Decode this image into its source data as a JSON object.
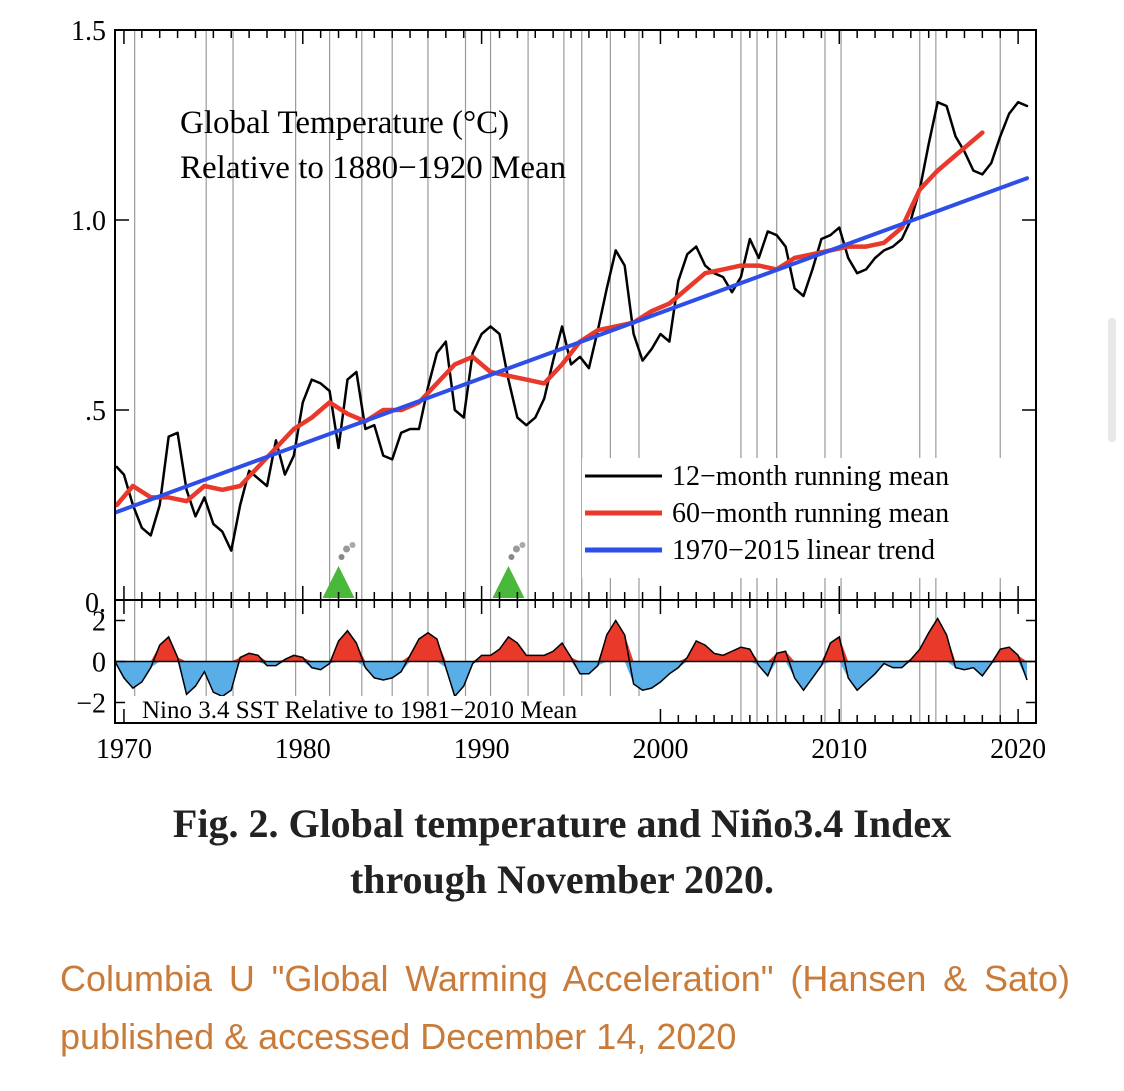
{
  "chart_data": [
    {
      "type": "line",
      "title": "Global Temperature (°C)",
      "subtitle": "Relative to 1880−1920 Mean",
      "xlim": [
        1969.5,
        2021
      ],
      "ylim": [
        0,
        1.5
      ],
      "ytick_labels": [
        "0.",
        ".5",
        "1.0",
        "1.5"
      ],
      "yticks": [
        0,
        0.5,
        1.0,
        1.5
      ],
      "xtick_labels": [
        "1970",
        "1980",
        "1990",
        "2000",
        "2010",
        "2020"
      ],
      "xticks": [
        1970,
        1980,
        1990,
        2000,
        2010,
        2020
      ],
      "grid": "vertical lines at El Niño / La Niña events",
      "event_lines": [
        1970.6,
        1974.6,
        1976.1,
        1979.6,
        1981.5,
        1983.3,
        1985.0,
        1987.0,
        1989.1,
        1990.5,
        1992.6,
        1994.6,
        1995.6,
        1997.2,
        1998.8,
        2004.5,
        2005.4,
        2006.5,
        2009.2,
        2010.1,
        2014.5,
        2015.4,
        2019.0
      ],
      "volcano_markers": [
        1982.0,
        1991.5
      ],
      "legend_position": "bottom-right",
      "series": [
        {
          "name": "12−month running mean",
          "color": "#000000",
          "x": [
            1969.6,
            1970.0,
            1970.5,
            1971.0,
            1971.5,
            1972.0,
            1972.5,
            1973.0,
            1973.5,
            1974.0,
            1974.5,
            1975.0,
            1975.5,
            1976.0,
            1976.5,
            1977.0,
            1977.5,
            1978.0,
            1978.5,
            1979.0,
            1979.5,
            1980.0,
            1980.5,
            1981.0,
            1981.5,
            1982.0,
            1982.5,
            1983.0,
            1983.5,
            1984.0,
            1984.5,
            1985.0,
            1985.5,
            1986.0,
            1986.5,
            1987.0,
            1987.5,
            1988.0,
            1988.5,
            1989.0,
            1989.5,
            1990.0,
            1990.5,
            1991.0,
            1991.5,
            1992.0,
            1992.5,
            1993.0,
            1993.5,
            1994.0,
            1994.5,
            1995.0,
            1995.5,
            1996.0,
            1996.5,
            1997.0,
            1997.5,
            1998.0,
            1998.5,
            1999.0,
            1999.5,
            2000.0,
            2000.5,
            2001.0,
            2001.5,
            2002.0,
            2002.5,
            2003.0,
            2003.5,
            2004.0,
            2004.5,
            2005.0,
            2005.5,
            2006.0,
            2006.5,
            2007.0,
            2007.5,
            2008.0,
            2008.5,
            2009.0,
            2009.5,
            2010.0,
            2010.5,
            2011.0,
            2011.5,
            2012.0,
            2012.5,
            2013.0,
            2013.5,
            2014.0,
            2014.5,
            2015.0,
            2015.5,
            2016.0,
            2016.5,
            2017.0,
            2017.5,
            2018.0,
            2018.5,
            2019.0,
            2019.5,
            2020.0,
            2020.5
          ],
          "values": [
            0.35,
            0.33,
            0.25,
            0.19,
            0.17,
            0.25,
            0.43,
            0.44,
            0.29,
            0.22,
            0.27,
            0.2,
            0.18,
            0.13,
            0.25,
            0.34,
            0.32,
            0.3,
            0.42,
            0.33,
            0.38,
            0.52,
            0.58,
            0.57,
            0.55,
            0.4,
            0.58,
            0.6,
            0.45,
            0.46,
            0.38,
            0.37,
            0.44,
            0.45,
            0.45,
            0.56,
            0.65,
            0.68,
            0.5,
            0.48,
            0.65,
            0.7,
            0.72,
            0.7,
            0.58,
            0.48,
            0.46,
            0.48,
            0.53,
            0.63,
            0.72,
            0.62,
            0.64,
            0.61,
            0.71,
            0.82,
            0.92,
            0.88,
            0.7,
            0.63,
            0.66,
            0.7,
            0.68,
            0.84,
            0.91,
            0.93,
            0.88,
            0.86,
            0.85,
            0.81,
            0.85,
            0.95,
            0.9,
            0.97,
            0.96,
            0.93,
            0.82,
            0.8,
            0.87,
            0.95,
            0.96,
            0.98,
            0.9,
            0.86,
            0.87,
            0.9,
            0.92,
            0.93,
            0.95,
            1.0,
            1.08,
            1.2,
            1.31,
            1.3,
            1.22,
            1.18,
            1.13,
            1.12,
            1.15,
            1.22,
            1.28,
            1.31,
            1.3
          ]
        },
        {
          "name": "60−month running mean",
          "color": "#e8392b",
          "x": [
            1969.6,
            1970.5,
            1971.5,
            1972.5,
            1973.5,
            1974.5,
            1975.5,
            1976.5,
            1977.5,
            1978.5,
            1979.5,
            1980.5,
            1981.5,
            1982.5,
            1983.5,
            1984.5,
            1985.5,
            1986.5,
            1987.5,
            1988.5,
            1989.5,
            1990.5,
            1991.5,
            1992.5,
            1993.5,
            1994.5,
            1995.5,
            1996.5,
            1997.5,
            1998.5,
            1999.5,
            2000.5,
            2001.5,
            2002.5,
            2003.5,
            2004.5,
            2005.5,
            2006.5,
            2007.5,
            2008.5,
            2009.5,
            2010.5,
            2011.5,
            2012.5,
            2013.5,
            2014.5,
            2015.5,
            2016.5,
            2017.5,
            2018.0
          ],
          "values": [
            0.25,
            0.3,
            0.27,
            0.27,
            0.26,
            0.3,
            0.29,
            0.3,
            0.35,
            0.4,
            0.45,
            0.48,
            0.52,
            0.49,
            0.47,
            0.5,
            0.5,
            0.52,
            0.57,
            0.62,
            0.64,
            0.6,
            0.59,
            0.58,
            0.57,
            0.62,
            0.68,
            0.71,
            0.72,
            0.73,
            0.76,
            0.78,
            0.82,
            0.86,
            0.87,
            0.88,
            0.88,
            0.87,
            0.9,
            0.91,
            0.92,
            0.93,
            0.93,
            0.94,
            0.98,
            1.08,
            1.13,
            1.17,
            1.21,
            1.23
          ]
        },
        {
          "name": "1970−2015 linear trend",
          "color": "#2e4ee8",
          "x": [
            1969.5,
            2020.5
          ],
          "values": [
            0.23,
            1.11
          ]
        }
      ]
    },
    {
      "type": "area",
      "title": "Nino 3.4 SST Relative to 1981−2010 Mean",
      "xlim": [
        1969.5,
        2021
      ],
      "ylim": [
        -3,
        3
      ],
      "ytick_labels": [
        "2",
        "0",
        "−2"
      ],
      "yticks": [
        2,
        0,
        -2
      ],
      "positive_color": "#e8392b",
      "negative_color": "#5aaee8",
      "x": [
        1969.5,
        1970.0,
        1970.5,
        1971.0,
        1971.5,
        1972.0,
        1972.5,
        1973.0,
        1973.5,
        1974.0,
        1974.5,
        1975.0,
        1975.5,
        1976.0,
        1976.5,
        1977.0,
        1977.5,
        1978.0,
        1978.5,
        1979.0,
        1979.5,
        1980.0,
        1980.5,
        1981.0,
        1981.5,
        1982.0,
        1982.5,
        1983.0,
        1983.5,
        1984.0,
        1984.5,
        1985.0,
        1985.5,
        1986.0,
        1986.5,
        1987.0,
        1987.5,
        1988.0,
        1988.5,
        1989.0,
        1989.5,
        1990.0,
        1990.5,
        1991.0,
        1991.5,
        1992.0,
        1992.5,
        1993.0,
        1993.5,
        1994.0,
        1994.5,
        1995.0,
        1995.5,
        1996.0,
        1996.5,
        1997.0,
        1997.5,
        1998.0,
        1998.5,
        1999.0,
        1999.5,
        2000.0,
        2000.5,
        2001.0,
        2001.5,
        2002.0,
        2002.5,
        2003.0,
        2003.5,
        2004.0,
        2004.5,
        2005.0,
        2005.5,
        2006.0,
        2006.5,
        2007.0,
        2007.5,
        2008.0,
        2008.5,
        2009.0,
        2009.5,
        2010.0,
        2010.5,
        2011.0,
        2011.5,
        2012.0,
        2012.5,
        2013.0,
        2013.5,
        2014.0,
        2014.5,
        2015.0,
        2015.5,
        2016.0,
        2016.5,
        2017.0,
        2017.5,
        2018.0,
        2018.5,
        2019.0,
        2019.5,
        2020.0,
        2020.5
      ],
      "values": [
        0.0,
        -0.8,
        -1.3,
        -1.0,
        -0.3,
        0.8,
        1.2,
        0.2,
        -1.6,
        -1.2,
        -0.5,
        -1.5,
        -1.7,
        -1.4,
        0.2,
        0.4,
        0.3,
        -0.2,
        -0.2,
        0.1,
        0.3,
        0.2,
        -0.3,
        -0.4,
        -0.1,
        1.0,
        1.5,
        0.9,
        -0.3,
        -0.8,
        -0.9,
        -0.8,
        -0.5,
        0.3,
        1.1,
        1.4,
        1.1,
        -0.3,
        -1.7,
        -1.2,
        -0.1,
        0.3,
        0.3,
        0.6,
        1.2,
        0.9,
        0.3,
        0.3,
        0.3,
        0.5,
        0.9,
        0.2,
        -0.6,
        -0.6,
        -0.2,
        1.3,
        2.0,
        1.3,
        -1.1,
        -1.4,
        -1.3,
        -1.0,
        -0.6,
        -0.3,
        0.2,
        1.0,
        0.8,
        0.4,
        0.3,
        0.5,
        0.7,
        0.6,
        -0.2,
        -0.7,
        0.4,
        0.5,
        -0.8,
        -1.4,
        -0.8,
        -0.2,
        0.9,
        1.2,
        -0.8,
        -1.4,
        -1.0,
        -0.6,
        -0.1,
        -0.3,
        -0.3,
        0.1,
        0.6,
        1.4,
        2.1,
        1.3,
        -0.3,
        -0.4,
        -0.3,
        -0.7,
        -0.1,
        0.6,
        0.7,
        0.3,
        -0.9
      ]
    }
  ],
  "caption_line1": "Fig. 2. Global temperature and Niño3.4 Index",
  "caption_line2": "through November 2020.",
  "source_text": "Columbia U \"Global Warming Acceleration\" (Hansen & Sato) published & accessed December 14, 2020"
}
